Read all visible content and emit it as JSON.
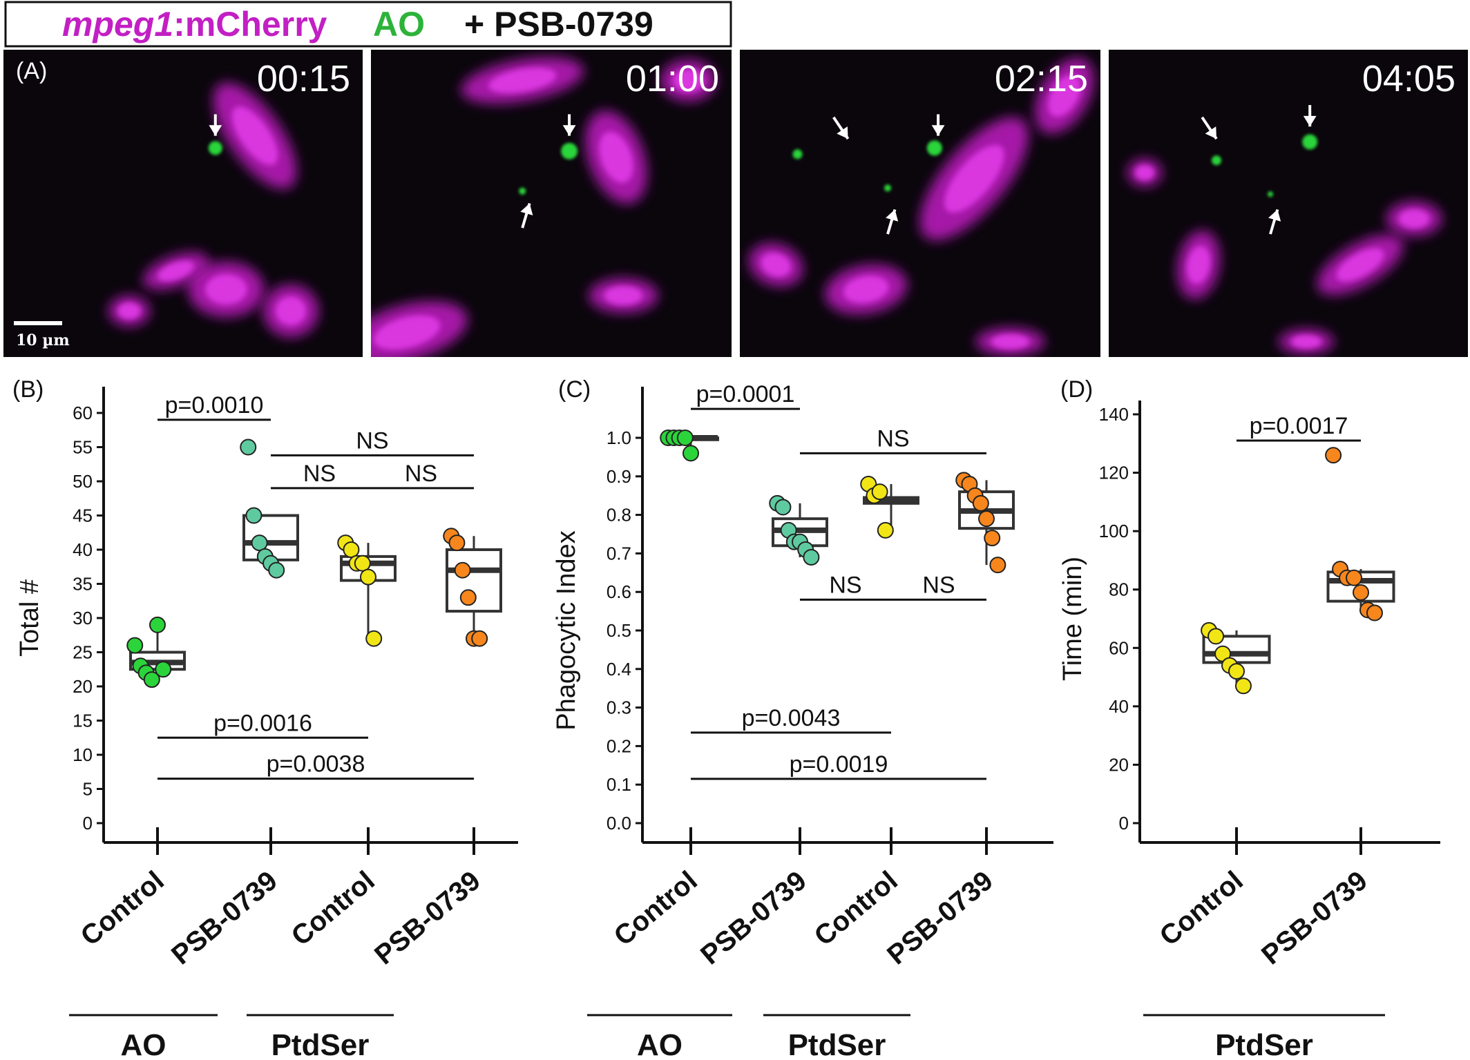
{
  "header": {
    "gene_italic": "mpeg1",
    "reporter": ":mCherry",
    "dye": "AO",
    "drug": "+ PSB-0739"
  },
  "colors": {
    "magenta": "#c21fc4",
    "green": "#1db03a",
    "ao_green": "#2bd43a",
    "teal": "#5fcaa0",
    "yellow": "#f2e516",
    "orange": "#f7861c"
  },
  "panel_a": {
    "label": "(A)",
    "frames": [
      {
        "time": "00:15"
      },
      {
        "time": "01:00"
      },
      {
        "time": "02:15"
      },
      {
        "time": "04:05"
      }
    ],
    "scale_bar": "10 µm"
  },
  "chart_data": [
    {
      "panel": "(B)",
      "type": "box+scatter",
      "ylabel": "Total #",
      "ylim": [
        0,
        60
      ],
      "yticks": [
        0,
        5,
        10,
        15,
        20,
        25,
        30,
        35,
        40,
        45,
        50,
        55,
        60
      ],
      "categories": [
        "Control",
        "PSB-0739",
        "Control",
        "PSB-0739"
      ],
      "groups": [
        {
          "label": "AO",
          "span": [
            0,
            0
          ]
        },
        {
          "label": "PtdSer",
          "span": [
            1,
            2
          ]
        }
      ],
      "boxes": [
        {
          "q1": 22.5,
          "median": 23.5,
          "q3": 25,
          "lo": 21,
          "hi": 29,
          "points": [
            26,
            23,
            22,
            21,
            29,
            22.5
          ],
          "color": "#2bd43a"
        },
        {
          "q1": 38.5,
          "median": 41,
          "q3": 45,
          "lo": 37,
          "hi": 45,
          "points": [
            55,
            45,
            41,
            39,
            38,
            37
          ],
          "color": "#5fcaa0"
        },
        {
          "q1": 35.5,
          "median": 38,
          "q3": 39,
          "lo": 27,
          "hi": 41,
          "points": [
            41,
            40,
            38,
            38,
            36,
            27
          ],
          "color": "#f2e516"
        },
        {
          "q1": 31,
          "median": 37,
          "q3": 40,
          "lo": 27,
          "hi": 42,
          "points": [
            42,
            41,
            37,
            33,
            27,
            27
          ],
          "color": "#f7861c"
        }
      ],
      "annotations": [
        {
          "text": "p=0.0010",
          "from": 0,
          "to": 1,
          "y": 59
        },
        {
          "text": "NS",
          "from": 1,
          "to": 3,
          "y": 53.8
        },
        {
          "text": "NS",
          "from": 1,
          "to": 2,
          "y": 49
        },
        {
          "text": "NS",
          "from": 2,
          "to": 3,
          "y": 49
        },
        {
          "text": "p=0.0016",
          "from": 0,
          "to": 2,
          "y": 12.5
        },
        {
          "text": "p=0.0038",
          "from": 0,
          "to": 3,
          "y": 6.5
        }
      ]
    },
    {
      "panel": "(C)",
      "type": "box+scatter",
      "ylabel": "Phagocytic Index",
      "ylim": [
        0,
        1
      ],
      "yticks": [
        "0.0",
        "0.1",
        "0.2",
        "0.3",
        "0.4",
        "0.5",
        "0.6",
        "0.7",
        "0.8",
        "0.9",
        "1.0"
      ],
      "categories": [
        "Control",
        "PSB-0739",
        "Control",
        "PSB-0739"
      ],
      "groups": [
        {
          "label": "AO",
          "span": [
            0,
            0
          ]
        },
        {
          "label": "PtdSer",
          "span": [
            1,
            2
          ]
        }
      ],
      "boxes": [
        {
          "q1": 0.995,
          "median": 1.0,
          "q3": 1.0,
          "lo": 0.96,
          "hi": 1.0,
          "points": [
            1.0,
            1.0,
            1.0,
            1.0,
            0.96
          ],
          "color": "#2bd43a"
        },
        {
          "q1": 0.72,
          "median": 0.76,
          "q3": 0.79,
          "lo": 0.69,
          "hi": 0.83,
          "points": [
            0.83,
            0.82,
            0.76,
            0.73,
            0.73,
            0.71,
            0.69
          ],
          "color": "#5fcaa0"
        },
        {
          "q1": 0.83,
          "median": 0.84,
          "q3": 0.845,
          "lo": 0.76,
          "hi": 0.88,
          "points": [
            0.88,
            0.85,
            0.86,
            0.76
          ],
          "color": "#f2e516"
        },
        {
          "q1": 0.765,
          "median": 0.81,
          "q3": 0.86,
          "lo": 0.67,
          "hi": 0.89,
          "points": [
            0.89,
            0.88,
            0.85,
            0.83,
            0.79,
            0.74,
            0.67
          ],
          "color": "#f7861c"
        }
      ],
      "annotations": [
        {
          "text": "p=0.0001",
          "from": 0,
          "to": 1,
          "y": 1.075
        },
        {
          "text": "NS",
          "from": 1,
          "to": 3,
          "y": 0.96
        },
        {
          "text": "NS",
          "from": 1,
          "to": 2,
          "y": 0.58
        },
        {
          "text": "NS",
          "from": 2,
          "to": 3,
          "y": 0.58
        },
        {
          "text": "p=0.0043",
          "from": 0,
          "to": 2,
          "y": 0.235
        },
        {
          "text": "p=0.0019",
          "from": 0,
          "to": 3,
          "y": 0.115
        }
      ]
    },
    {
      "panel": "(D)",
      "type": "box+scatter",
      "ylabel": "Time (min)",
      "ylim": [
        0,
        140
      ],
      "yticks": [
        0,
        20,
        40,
        60,
        80,
        100,
        120,
        140
      ],
      "categories": [
        "Control",
        "PSB-0739"
      ],
      "groups": [
        {
          "label": "PtdSer",
          "span": [
            0,
            1
          ]
        }
      ],
      "boxes": [
        {
          "q1": 55,
          "median": 58,
          "q3": 64,
          "lo": 47,
          "hi": 66,
          "points": [
            66,
            64,
            58,
            54,
            52,
            47
          ],
          "color": "#f2e516"
        },
        {
          "q1": 76,
          "median": 83,
          "q3": 86,
          "lo": 72,
          "hi": 87,
          "points": [
            126,
            87,
            84,
            84,
            79,
            73,
            72
          ],
          "color": "#f7861c"
        }
      ],
      "annotations": [
        {
          "text": "p=0.0017",
          "from": 0,
          "to": 1,
          "y": 131
        }
      ]
    }
  ]
}
